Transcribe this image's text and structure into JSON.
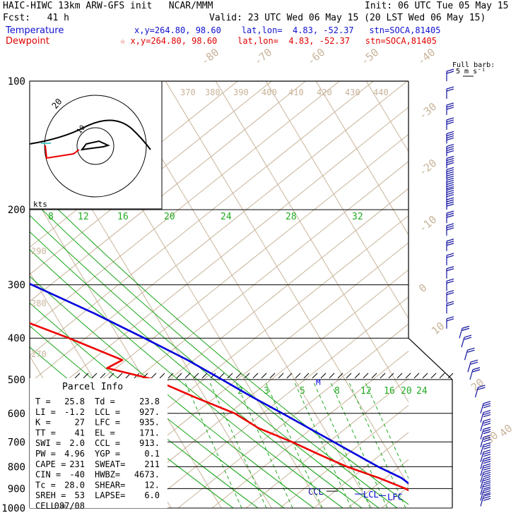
{
  "header": {
    "title": "HAIC-HIWC 13km ARW-GFS init   NCAR/MMM",
    "init": "Init: 06 UTC Tue 05 May 15",
    "fcst": "Fcst:   41 h",
    "valid": "Valid: 23 UTC Wed 06 May 15 (20 LST Wed 06 May 15)",
    "temp_label": "Temperature",
    "temp_info": "x,y=264.80, 98.60    lat,lon=  4.83, -52.37   stn=SOCA,81405",
    "dew_label": "Dewpoint",
    "dew_info": "☆ x,y=264.80, 98.60    lat,lon=  4.83, -52.37   stn=SOCA,81405"
  },
  "colors": {
    "temperature": "#0000dd",
    "dewpoint": "#ee0000",
    "isotherm": "#c8b49a",
    "mixing_ratio": "#22aa22",
    "barb": "#1010a0"
  },
  "barb_legend": {
    "line1": "Full barb:",
    "line2": "5 m s⁻¹"
  },
  "hodograph": {
    "units": "kts",
    "ring_label": "20",
    "inner_label": "10"
  },
  "parcel_info": {
    "title": "Parcel Info",
    "rows": [
      [
        "T  =",
        "25.8",
        "Td =",
        "23.8"
      ],
      [
        "LI =",
        "-1.2",
        "LCL =",
        "927."
      ],
      [
        "K  =",
        "27",
        "LFC =",
        "935."
      ],
      [
        "TT =",
        "41",
        "EL  =",
        "171."
      ],
      [
        "SWI =",
        "2.0",
        "CCL =",
        "913."
      ],
      [
        "PW =",
        "4.96",
        "YGP =",
        "0.1"
      ],
      [
        "CAPE =",
        "231",
        "SWEAT=",
        "211"
      ],
      [
        "CIN =",
        "-40",
        "HWBZ=",
        "4673."
      ],
      [
        "Tc =",
        "28.0",
        "SHEAR=",
        "12."
      ],
      [
        "SREH =",
        "53",
        "LAPSE=",
        "6.0"
      ],
      [
        "CELL =",
        "087/08",
        "",
        ""
      ]
    ]
  },
  "level_labels": {
    "el": "EL",
    "lcl": "LCL",
    "lfc": "LFC",
    "ccl": "CCL",
    "m": "M"
  },
  "chart_data": {
    "type": "line",
    "title": "Skew-T log-P sounding",
    "pressure_levels_hpa": [
      100,
      200,
      300,
      400,
      500,
      600,
      700,
      800,
      900,
      1000
    ],
    "isotherm_labels_c": [
      "-80",
      "-70",
      "-60",
      "-50",
      "-40",
      "-30",
      "-20",
      "-10",
      "0",
      "10",
      "20",
      "30",
      "40"
    ],
    "theta_labels_k": [
      "370",
      "380",
      "390",
      "400",
      "410",
      "420",
      "430",
      "440",
      "290",
      "280",
      "270"
    ],
    "mixing_ratio_labels_upper": [
      "8",
      "12",
      "16",
      "20",
      "24",
      "28",
      "32"
    ],
    "mixing_ratio_labels_lower": [
      "2",
      "3",
      "5",
      "8",
      "12",
      "16",
      "20",
      "24"
    ],
    "series": [
      {
        "name": "Temperature",
        "color": "#0000dd",
        "points": [
          [
            1000,
            25.8
          ],
          [
            950,
            23.5
          ],
          [
            900,
            21.0
          ],
          [
            850,
            19.5
          ],
          [
            800,
            16.2
          ],
          [
            700,
            10.3
          ],
          [
            600,
            3.5
          ],
          [
            550,
            -0.5
          ],
          [
            500,
            -4.5
          ],
          [
            450,
            -9.0
          ],
          [
            400,
            -15.0
          ],
          [
            350,
            -22.0
          ],
          [
            300,
            -31.0
          ],
          [
            250,
            -42.0
          ],
          [
            200,
            -55.0
          ],
          [
            150,
            -68.5
          ],
          [
            125,
            -76.0
          ],
          [
            110,
            -77.0
          ],
          [
            100,
            -74.0
          ]
        ]
      },
      {
        "name": "Dewpoint",
        "color": "#ee0000",
        "points": [
          [
            1000,
            23.8
          ],
          [
            950,
            21.5
          ],
          [
            900,
            19.0
          ],
          [
            850,
            15.0
          ],
          [
            800,
            10.0
          ],
          [
            750,
            6.0
          ],
          [
            700,
            2.0
          ],
          [
            650,
            -3.0
          ],
          [
            600,
            -6.0
          ],
          [
            550,
            -12.0
          ],
          [
            500,
            -18.0
          ],
          [
            470,
            -26.0
          ],
          [
            450,
            -22.0
          ],
          [
            400,
            -30.0
          ],
          [
            350,
            -40.0
          ],
          [
            300,
            -45.0
          ],
          [
            270,
            -53.0
          ],
          [
            250,
            -54.0
          ],
          [
            240,
            -47.0
          ],
          [
            220,
            -52.0
          ],
          [
            200,
            -58.0
          ],
          [
            180,
            -64.0
          ],
          [
            150,
            -75.0
          ],
          [
            120,
            -79.0
          ],
          [
            100,
            -80.0
          ]
        ]
      }
    ],
    "wind_barbs": [
      [
        100,
        2
      ],
      [
        110,
        2
      ],
      [
        120,
        3
      ],
      [
        130,
        3
      ],
      [
        140,
        4
      ],
      [
        150,
        4
      ],
      [
        160,
        4
      ],
      [
        170,
        5
      ],
      [
        180,
        5
      ],
      [
        190,
        4
      ],
      [
        200,
        4
      ],
      [
        215,
        3
      ],
      [
        230,
        3
      ],
      [
        250,
        3
      ],
      [
        270,
        2
      ],
      [
        290,
        2
      ],
      [
        310,
        2
      ],
      [
        330,
        2
      ],
      [
        350,
        2
      ],
      [
        380,
        2
      ],
      [
        400,
        2
      ],
      [
        420,
        2
      ],
      [
        450,
        2
      ],
      [
        480,
        2
      ],
      [
        500,
        2
      ],
      [
        550,
        2
      ],
      [
        600,
        3
      ],
      [
        630,
        3
      ],
      [
        660,
        3
      ],
      [
        690,
        3
      ],
      [
        720,
        3
      ],
      [
        750,
        3
      ],
      [
        780,
        3
      ],
      [
        810,
        3
      ],
      [
        840,
        3
      ],
      [
        870,
        3
      ],
      [
        900,
        3
      ],
      [
        930,
        3
      ],
      [
        960,
        3
      ],
      [
        990,
        3
      ]
    ],
    "parcel_levels_hpa": {
      "EL": 171,
      "LCL": 927,
      "LFC": 935,
      "CCL": 913
    },
    "ylim": [
      1000,
      100
    ]
  }
}
